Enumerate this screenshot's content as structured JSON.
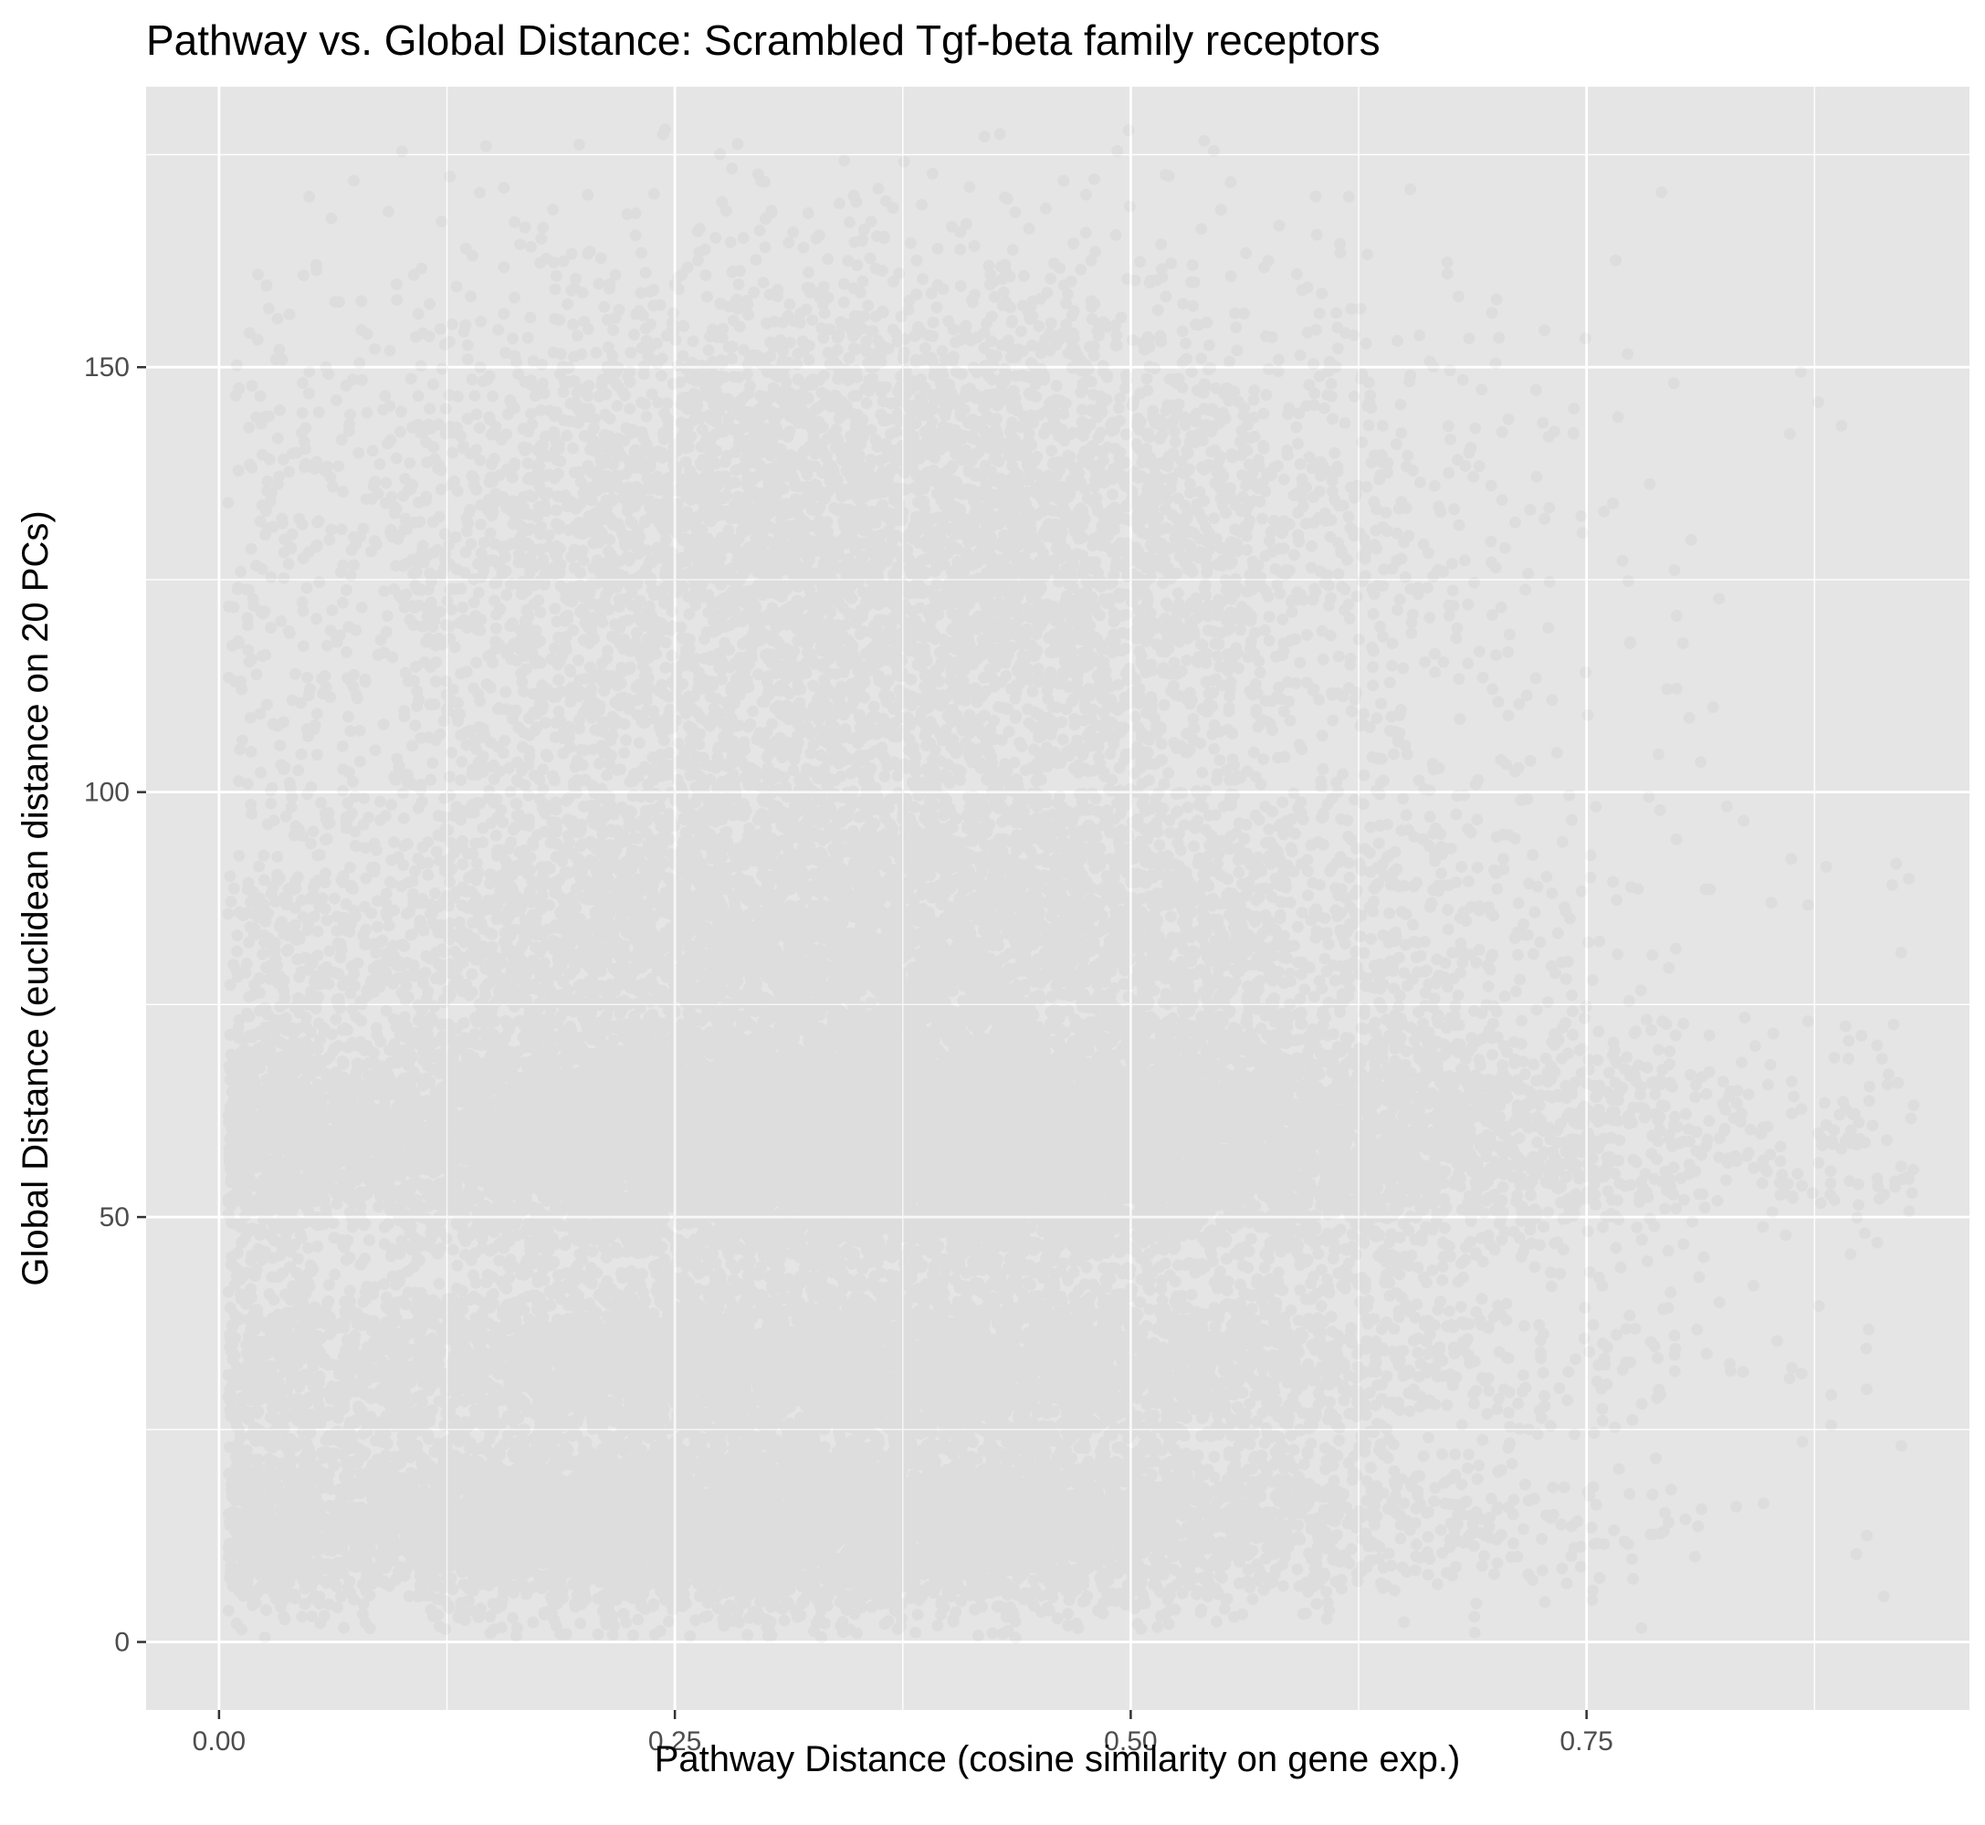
{
  "chart_data": {
    "type": "scatter",
    "title": "Pathway vs. Global Distance: Scrambled Tgf-beta family receptors",
    "xlabel": "Pathway Distance (cosine similarity on gene exp.)",
    "ylabel": "Global Distance (euclidean distance on 20 PCs)",
    "xlim": [
      -0.04,
      0.96
    ],
    "ylim": [
      -8,
      183
    ],
    "x_ticks": [
      0,
      0.25,
      0.5,
      0.75
    ],
    "x_tick_labels": [
      "0.00",
      "0.25",
      "0.50",
      "0.75"
    ],
    "y_ticks": [
      0,
      50,
      100,
      150
    ],
    "y_tick_labels": [
      "0",
      "50",
      "100",
      "150"
    ],
    "grid": true,
    "legend": "none",
    "panel_color": "#e5e5e5",
    "gridline_color": "#ffffff",
    "point_color": "#000000",
    "point_alpha": 0.03,
    "approx_point_count": 40000,
    "density_bands": [
      {
        "x_center": 0.37,
        "x_spread": 0.19,
        "y_center": 59,
        "y_spread": 7,
        "weight": 0.35
      },
      {
        "x_center": 0.33,
        "x_spread": 0.17,
        "y_center": 33,
        "y_spread": 5,
        "weight": 0.15
      },
      {
        "x_center": 0.3,
        "x_spread": 0.17,
        "y_center": 14,
        "y_spread": 5,
        "weight": 0.2
      },
      {
        "x_center": 0.35,
        "x_spread": 0.16,
        "y_center": 84,
        "y_spread": 10,
        "weight": 0.14
      },
      {
        "x_center": 0.36,
        "x_spread": 0.15,
        "y_center": 128,
        "y_spread": 17,
        "weight": 0.16
      }
    ]
  }
}
